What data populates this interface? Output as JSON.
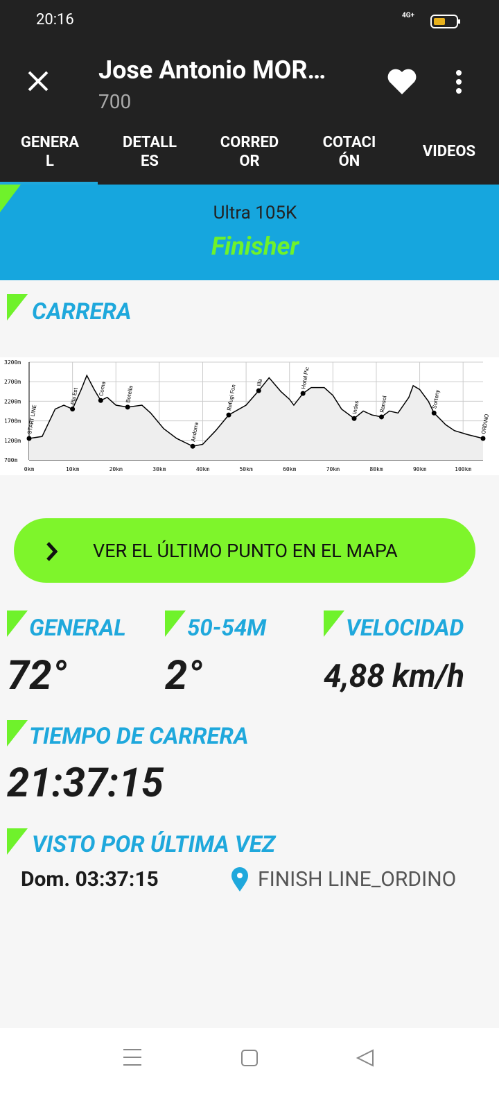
{
  "status_bar": {
    "time": "20:16",
    "network": "4G+"
  },
  "header": {
    "title": "Jose Antonio MOR…",
    "subtitle": "700"
  },
  "tabs": [
    {
      "lines": [
        "GENERA",
        "L"
      ]
    },
    {
      "lines": [
        "DETALL",
        "ES"
      ]
    },
    {
      "lines": [
        "CORRED",
        "OR"
      ]
    },
    {
      "lines": [
        "COTACI",
        "ÓN"
      ]
    },
    {
      "lines": [
        "VIDEOS"
      ]
    }
  ],
  "banner": {
    "race": "Ultra 105K",
    "status": "Finisher"
  },
  "carrera": {
    "heading": "CARRERA"
  },
  "chart_data": {
    "type": "line",
    "xlim": [
      0,
      104.6
    ],
    "ylim": [
      700,
      3200
    ],
    "xticks": [
      {
        "value": 0,
        "label": "0km"
      },
      {
        "value": 10,
        "label": "10km"
      },
      {
        "value": 20,
        "label": "20km"
      },
      {
        "value": 30,
        "label": "30km"
      },
      {
        "value": 40,
        "label": "40km"
      },
      {
        "value": 50,
        "label": "50km"
      },
      {
        "value": 60,
        "label": "60km"
      },
      {
        "value": 70,
        "label": "70km"
      },
      {
        "value": 80,
        "label": "80km"
      },
      {
        "value": 90,
        "label": "90km"
      },
      {
        "value": 100,
        "label": "100km"
      }
    ],
    "yticks": [
      {
        "value": 3200,
        "label": "3200m"
      },
      {
        "value": 2700,
        "label": "2700m"
      },
      {
        "value": 2200,
        "label": "2200m"
      },
      {
        "value": 1700,
        "label": "1700m"
      },
      {
        "value": 1200,
        "label": "1200m"
      },
      {
        "value": 700,
        "label": "700m"
      }
    ],
    "grid": true,
    "series": [
      {
        "color": "#000000",
        "x": [
          0,
          3,
          6,
          8,
          10,
          12,
          13.3,
          15,
          16.5,
          18,
          20,
          22.7,
          26,
          28,
          31,
          34,
          37.7,
          40,
          43,
          46,
          50,
          52.9,
          55.3,
          58,
          60,
          61,
          63.1,
          65,
          68,
          70,
          72,
          74.9,
          77,
          79,
          81.2,
          83,
          85,
          87.5,
          88.5,
          90,
          92,
          93.3,
          96,
          98,
          101,
          104.6
        ],
        "y": [
          1250,
          1300,
          2000,
          2100,
          2000,
          2500,
          2860,
          2500,
          2220,
          2300,
          2100,
          2050,
          2100,
          1900,
          1500,
          1250,
          1050,
          1100,
          1450,
          1850,
          2100,
          2470,
          2800,
          2450,
          2250,
          2100,
          2400,
          2550,
          2550,
          2350,
          2000,
          1760,
          1950,
          1850,
          1800,
          1950,
          1900,
          2300,
          2600,
          2500,
          2200,
          1900,
          1600,
          1450,
          1350,
          1250
        ]
      }
    ],
    "waypoints": [
      {
        "name": "START LINE",
        "km": 0,
        "elevation": 1250
      },
      {
        "name": "Pla Est",
        "km": 10,
        "elevation": 2000
      },
      {
        "name": "Coma",
        "km": 16.5,
        "elevation": 2220
      },
      {
        "name": "Botella",
        "km": 22.7,
        "elevation": 2050
      },
      {
        "name": "Andorra",
        "km": 37.7,
        "elevation": 1050
      },
      {
        "name": "Refugi Fon",
        "km": 46,
        "elevation": 1850
      },
      {
        "name": "Illa",
        "km": 52.9,
        "elevation": 2470
      },
      {
        "name": "Hotel Pic",
        "km": 63.1,
        "elevation": 2400
      },
      {
        "name": "Indes",
        "km": 74.9,
        "elevation": 1760
      },
      {
        "name": "Ransol",
        "km": 81.2,
        "elevation": 1800
      },
      {
        "name": "Sorteny",
        "km": 93.3,
        "elevation": 1900
      },
      {
        "name": "ORDINO",
        "km": 104.6,
        "elevation": 1250
      }
    ]
  },
  "map_button": {
    "label": "VER EL ÚLTIMO PUNTO EN EL MAPA"
  },
  "stats": [
    {
      "label": "GENERAL",
      "value": "72°"
    },
    {
      "label": "50-54M",
      "value": "2°"
    },
    {
      "label": "VELOCIDAD",
      "value": "4,88 km/h"
    }
  ],
  "race_time": {
    "label": "TIEMPO DE CARRERA",
    "value": "21:37:15"
  },
  "last_seen": {
    "label": "VISTO POR ÚLTIMA VEZ",
    "time": "Dom. 03:37:15",
    "location": "FINISH LINE_ORDINO"
  }
}
